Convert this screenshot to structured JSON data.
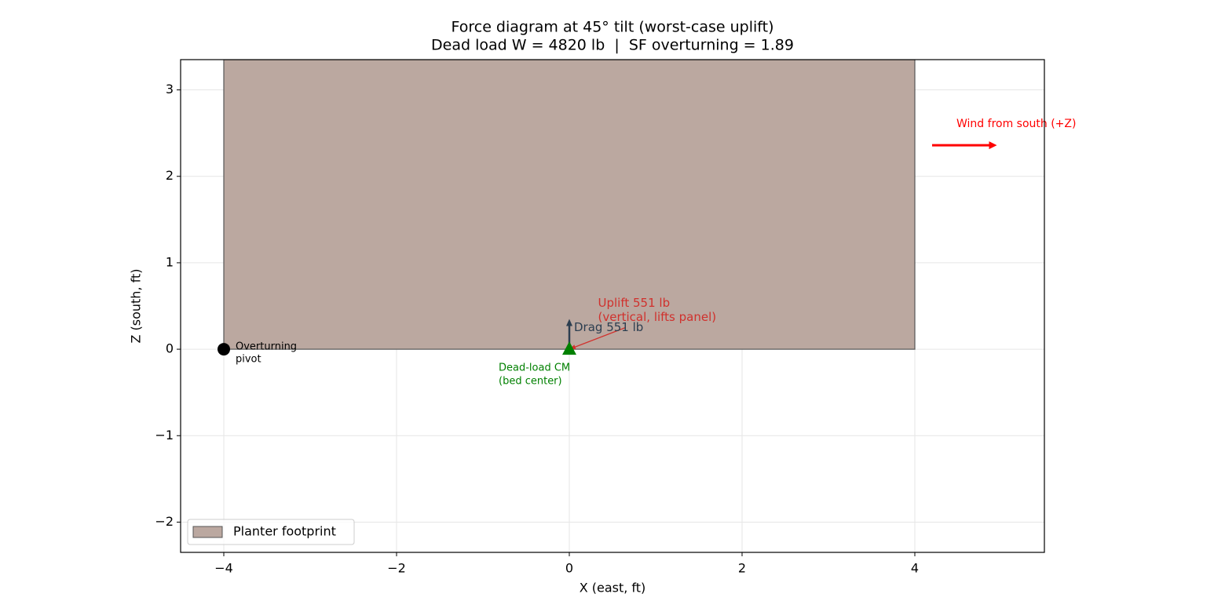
{
  "chart_data": {
    "type": "force-diagram",
    "title": [
      "Force diagram at 45° tilt (worst-case uplift)",
      "Dead load W = 4820 lb  |  SF overturning = 1.89"
    ],
    "xlabel": "X (east, ft)",
    "ylabel": "Z (south, ft)",
    "xlim": [
      -4.5,
      5.5
    ],
    "ylim": [
      -2.35,
      3.35
    ],
    "xticks": [
      {
        "value": -4,
        "label": "−4"
      },
      {
        "value": -2,
        "label": "−2"
      },
      0,
      2,
      4
    ],
    "yticks": [
      {
        "value": -2,
        "label": "−2"
      },
      {
        "value": -1,
        "label": "−1"
      },
      0,
      1,
      2,
      3
    ],
    "grid": true,
    "legend": "lower left",
    "footprint": {
      "name": "Planter footprint",
      "x": [
        -4,
        4
      ],
      "y": [
        0,
        3.35
      ],
      "color": "#bba8a0"
    },
    "pivot": {
      "label": [
        "Overturning",
        "pivot"
      ],
      "x": -4,
      "y": 0,
      "color": "#000000"
    },
    "center_of_mass": {
      "label": [
        "Dead-load CM",
        "(bed center)"
      ],
      "x": 0,
      "y": 0,
      "color": "#008000"
    },
    "drag": {
      "label": "Drag 551 lb",
      "x": [
        0,
        0
      ],
      "y": [
        0,
        0.35
      ],
      "color": "#2c3e50"
    },
    "uplift": {
      "label": [
        "Uplift 551 lb",
        "(vertical, lifts panel)"
      ],
      "x": [
        0.65,
        0
      ],
      "y": [
        0.25,
        0
      ],
      "color": "#d0312d"
    },
    "wind": {
      "label": "Wind from south (+Z)",
      "x": [
        4.2,
        4.95
      ],
      "y": [
        2.36,
        2.36
      ],
      "color": "#ff0000"
    }
  }
}
